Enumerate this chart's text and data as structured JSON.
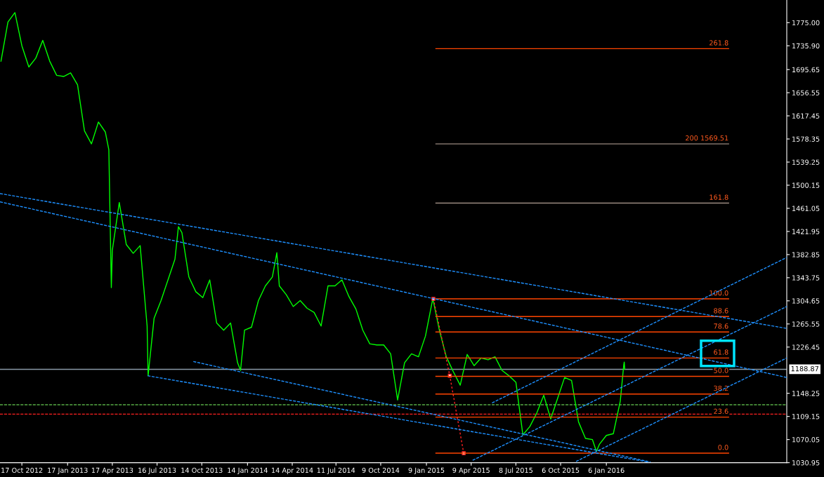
{
  "chart_data": {
    "type": "line",
    "xlim": [
      "2012-09-03",
      "2017-01-03"
    ],
    "ylim": [
      1030.95,
      1813.3
    ],
    "xticks": [
      {
        "value": "2012-10-17",
        "label": "17 Oct 2012"
      },
      {
        "value": "2013-01-17",
        "label": "17 Jan 2013"
      },
      {
        "value": "2013-04-17",
        "label": "17 Apr 2013"
      },
      {
        "value": "2013-07-16",
        "label": "16 Jul 2013"
      },
      {
        "value": "2013-10-14",
        "label": "14 Oct 2013"
      },
      {
        "value": "2014-01-14",
        "label": "14 Jan 2014"
      },
      {
        "value": "2014-04-14",
        "label": "14 Apr 2014"
      },
      {
        "value": "2014-07-11",
        "label": "11 Jul 2014"
      },
      {
        "value": "2014-10-09",
        "label": "9 Oct 2014"
      },
      {
        "value": "2015-01-09",
        "label": "9 Jan 2015"
      },
      {
        "value": "2015-04-09",
        "label": "9 Apr 2015"
      },
      {
        "value": "2015-07-08",
        "label": "8 Jul 2015"
      },
      {
        "value": "2015-10-06",
        "label": "6 Oct 2015"
      },
      {
        "value": "2016-01-06",
        "label": "6 Jan 2016"
      }
    ],
    "yticks": [
      {
        "value": 1775.0,
        "label": "1775.00"
      },
      {
        "value": 1735.9,
        "label": "1735.90"
      },
      {
        "value": 1695.65,
        "label": "1695.65"
      },
      {
        "value": 1656.55,
        "label": "1656.55"
      },
      {
        "value": 1617.45,
        "label": "1617.45"
      },
      {
        "value": 1578.35,
        "label": "1578.35"
      },
      {
        "value": 1539.25,
        "label": "1539.25"
      },
      {
        "value": 1500.15,
        "label": "1500.15"
      },
      {
        "value": 1461.05,
        "label": "1461.05"
      },
      {
        "value": 1421.95,
        "label": "1421.95"
      },
      {
        "value": 1382.85,
        "label": "1382.85"
      },
      {
        "value": 1343.75,
        "label": "1343.75"
      },
      {
        "value": 1304.65,
        "label": "1304.65"
      },
      {
        "value": 1265.55,
        "label": "1265.55"
      },
      {
        "value": 1226.45,
        "label": "1226.45"
      },
      {
        "value": 1148.25,
        "label": "1148.25"
      },
      {
        "value": 1109.15,
        "label": "1109.15"
      },
      {
        "value": 1070.05,
        "label": "1070.05"
      },
      {
        "value": 1030.95,
        "label": "1030.95"
      }
    ],
    "grid": false,
    "legend": false,
    "ref_lines": [
      {
        "axis": "y",
        "value": 1188.87,
        "label": "1188.87",
        "color": "#8a9aa8",
        "line_style": "solid"
      },
      {
        "axis": "y",
        "value": 1129,
        "color": "#55aa44",
        "line_style": "dashed"
      },
      {
        "axis": "y",
        "value": 1113,
        "color": "#ff2020",
        "line_style": "dashed"
      }
    ],
    "series": [
      {
        "color": "#00ff00",
        "x": [
          "2012-09-05",
          "2012-09-19",
          "2012-10-03",
          "2012-10-17",
          "2012-10-31",
          "2012-11-14",
          "2012-11-28",
          "2012-12-12",
          "2012-12-26",
          "2013-01-09",
          "2013-01-23",
          "2013-02-06",
          "2013-02-20",
          "2013-03-06",
          "2013-03-20",
          "2013-04-03",
          "2013-04-10",
          "2013-04-15",
          "2013-04-17",
          "2013-05-01",
          "2013-05-15",
          "2013-05-29",
          "2013-06-12",
          "2013-06-26",
          "2013-06-28",
          "2013-07-10",
          "2013-07-24",
          "2013-08-07",
          "2013-08-21",
          "2013-08-28",
          "2013-09-04",
          "2013-09-18",
          "2013-10-02",
          "2013-10-16",
          "2013-10-30",
          "2013-11-13",
          "2013-11-27",
          "2013-12-11",
          "2013-12-25",
          "2013-12-31",
          "2014-01-08",
          "2014-01-22",
          "2014-02-05",
          "2014-02-19",
          "2014-03-05",
          "2014-03-14",
          "2014-03-19",
          "2014-04-02",
          "2014-04-16",
          "2014-04-30",
          "2014-05-14",
          "2014-05-28",
          "2014-06-11",
          "2014-06-25",
          "2014-07-09",
          "2014-07-23",
          "2014-08-06",
          "2014-08-20",
          "2014-09-03",
          "2014-09-17",
          "2014-10-01",
          "2014-10-15",
          "2014-10-29",
          "2014-11-12",
          "2014-11-26",
          "2014-12-10",
          "2014-12-24",
          "2015-01-07",
          "2015-01-21",
          "2015-01-22",
          "2015-02-04",
          "2015-02-18",
          "2015-03-04",
          "2015-03-18",
          "2015-04-01",
          "2015-04-15",
          "2015-04-29",
          "2015-05-13",
          "2015-05-27",
          "2015-06-10",
          "2015-06-24",
          "2015-07-08",
          "2015-07-22",
          "2015-08-05",
          "2015-08-19",
          "2015-09-02",
          "2015-09-16",
          "2015-09-30",
          "2015-10-14",
          "2015-10-28",
          "2015-11-11",
          "2015-11-25",
          "2015-12-09",
          "2015-12-17",
          "2015-12-23",
          "2016-01-06",
          "2016-01-20",
          "2016-02-03",
          "2016-02-10",
          "2016-02-11",
          "2016-02-12"
        ],
        "values": [
          1710,
          1776,
          1792,
          1736,
          1700,
          1715,
          1745,
          1710,
          1686,
          1684,
          1690,
          1670,
          1592,
          1570,
          1607,
          1590,
          1560,
          1327,
          1390,
          1471,
          1400,
          1385,
          1398,
          1262,
          1178,
          1275,
          1305,
          1340,
          1375,
          1430,
          1420,
          1345,
          1320,
          1310,
          1340,
          1267,
          1255,
          1267,
          1200,
          1187,
          1255,
          1260,
          1305,
          1330,
          1345,
          1386,
          1330,
          1315,
          1295,
          1305,
          1292,
          1285,
          1262,
          1330,
          1330,
          1340,
          1312,
          1291,
          1255,
          1232,
          1230,
          1230,
          1215,
          1137,
          1200,
          1215,
          1210,
          1245,
          1305,
          1308,
          1255,
          1210,
          1185,
          1162,
          1214,
          1195,
          1208,
          1205,
          1210,
          1187,
          1178,
          1167,
          1078,
          1092,
          1115,
          1145,
          1105,
          1140,
          1175,
          1170,
          1100,
          1072,
          1070,
          1050,
          1062,
          1077,
          1080,
          1135,
          1196,
          1201,
          1189
        ]
      },
      {
        "color": "#ff2020",
        "line_style": "dotted",
        "marker": "square",
        "x": [
          "2015-01-23",
          "2015-02-25",
          "2015-03-25"
        ],
        "values": [
          1308,
          1178,
          1047
        ]
      },
      {
        "color": "#ff4500",
        "name": "0.0",
        "x": [
          "2015-01-28",
          "2016-09-08"
        ],
        "values": [
          1047,
          1047
        ]
      },
      {
        "color": "#ff4500",
        "name": "23.6",
        "x": [
          "2015-01-28",
          "2016-09-08"
        ],
        "values": [
          1108,
          1108
        ]
      },
      {
        "color": "#ff4500",
        "name": "38.2",
        "x": [
          "2015-01-28",
          "2016-09-08"
        ],
        "values": [
          1147,
          1147
        ]
      },
      {
        "color": "#ff4500",
        "name": "50.0",
        "x": [
          "2015-01-28",
          "2016-09-08"
        ],
        "values": [
          1177,
          1177
        ]
      },
      {
        "color": "#ff4500",
        "name": "61.8",
        "x": [
          "2015-01-28",
          "2016-09-08"
        ],
        "values": [
          1208,
          1208
        ]
      },
      {
        "color": "#ff4500",
        "name": "78.6",
        "x": [
          "2015-01-28",
          "2016-09-08"
        ],
        "values": [
          1252,
          1252
        ]
      },
      {
        "color": "#ff4500",
        "name": "88.6",
        "x": [
          "2015-01-28",
          "2016-09-08"
        ],
        "values": [
          1278,
          1278
        ]
      },
      {
        "color": "#ff4500",
        "name": "100.0",
        "x": [
          "2015-01-28",
          "2016-09-08"
        ],
        "values": [
          1308,
          1308
        ]
      },
      {
        "color": "#9a8a80",
        "name": "161.8",
        "x": [
          "2015-01-28",
          "2016-09-08"
        ],
        "values": [
          1470,
          1470
        ]
      },
      {
        "color": "#9a8a80",
        "name": "200 1569.51",
        "x": [
          "2015-01-28",
          "2016-09-08"
        ],
        "values": [
          1570,
          1570
        ]
      },
      {
        "color": "#ff4500",
        "name": "261.8",
        "x": [
          "2015-01-28",
          "2016-09-08"
        ],
        "values": [
          1731,
          1731
        ]
      },
      {
        "color": "#1e90ff",
        "line_style": "dashed",
        "x": [
          "2012-09-03",
          "2017-01-03"
        ],
        "values": [
          1486,
          1258
        ]
      },
      {
        "color": "#1e90ff",
        "line_style": "dashed",
        "x": [
          "2012-09-03",
          "2017-01-03"
        ],
        "values": [
          1472,
          1175
        ]
      },
      {
        "color": "#1e90ff",
        "line_style": "dashed",
        "x": [
          "2013-06-27",
          "2016-03-31"
        ],
        "values": [
          1178,
          1032
        ]
      },
      {
        "color": "#1e90ff",
        "line_style": "dashed",
        "x": [
          "2013-09-27",
          "2016-04-04"
        ],
        "values": [
          1202,
          1032
        ]
      },
      {
        "color": "#1e90ff",
        "line_style": "dashed",
        "x": [
          "2015-05-21",
          "2017-01-03"
        ],
        "values": [
          1132,
          1378
        ]
      },
      {
        "color": "#1e90ff",
        "line_style": "dashed",
        "x": [
          "2015-04-12",
          "2017-01-03"
        ],
        "values": [
          1035,
          1295
        ]
      },
      {
        "color": "#1e90ff",
        "line_style": "dashed",
        "x": [
          "2015-11-06",
          "2017-01-03"
        ],
        "values": [
          1033,
          1208
        ]
      }
    ]
  }
}
